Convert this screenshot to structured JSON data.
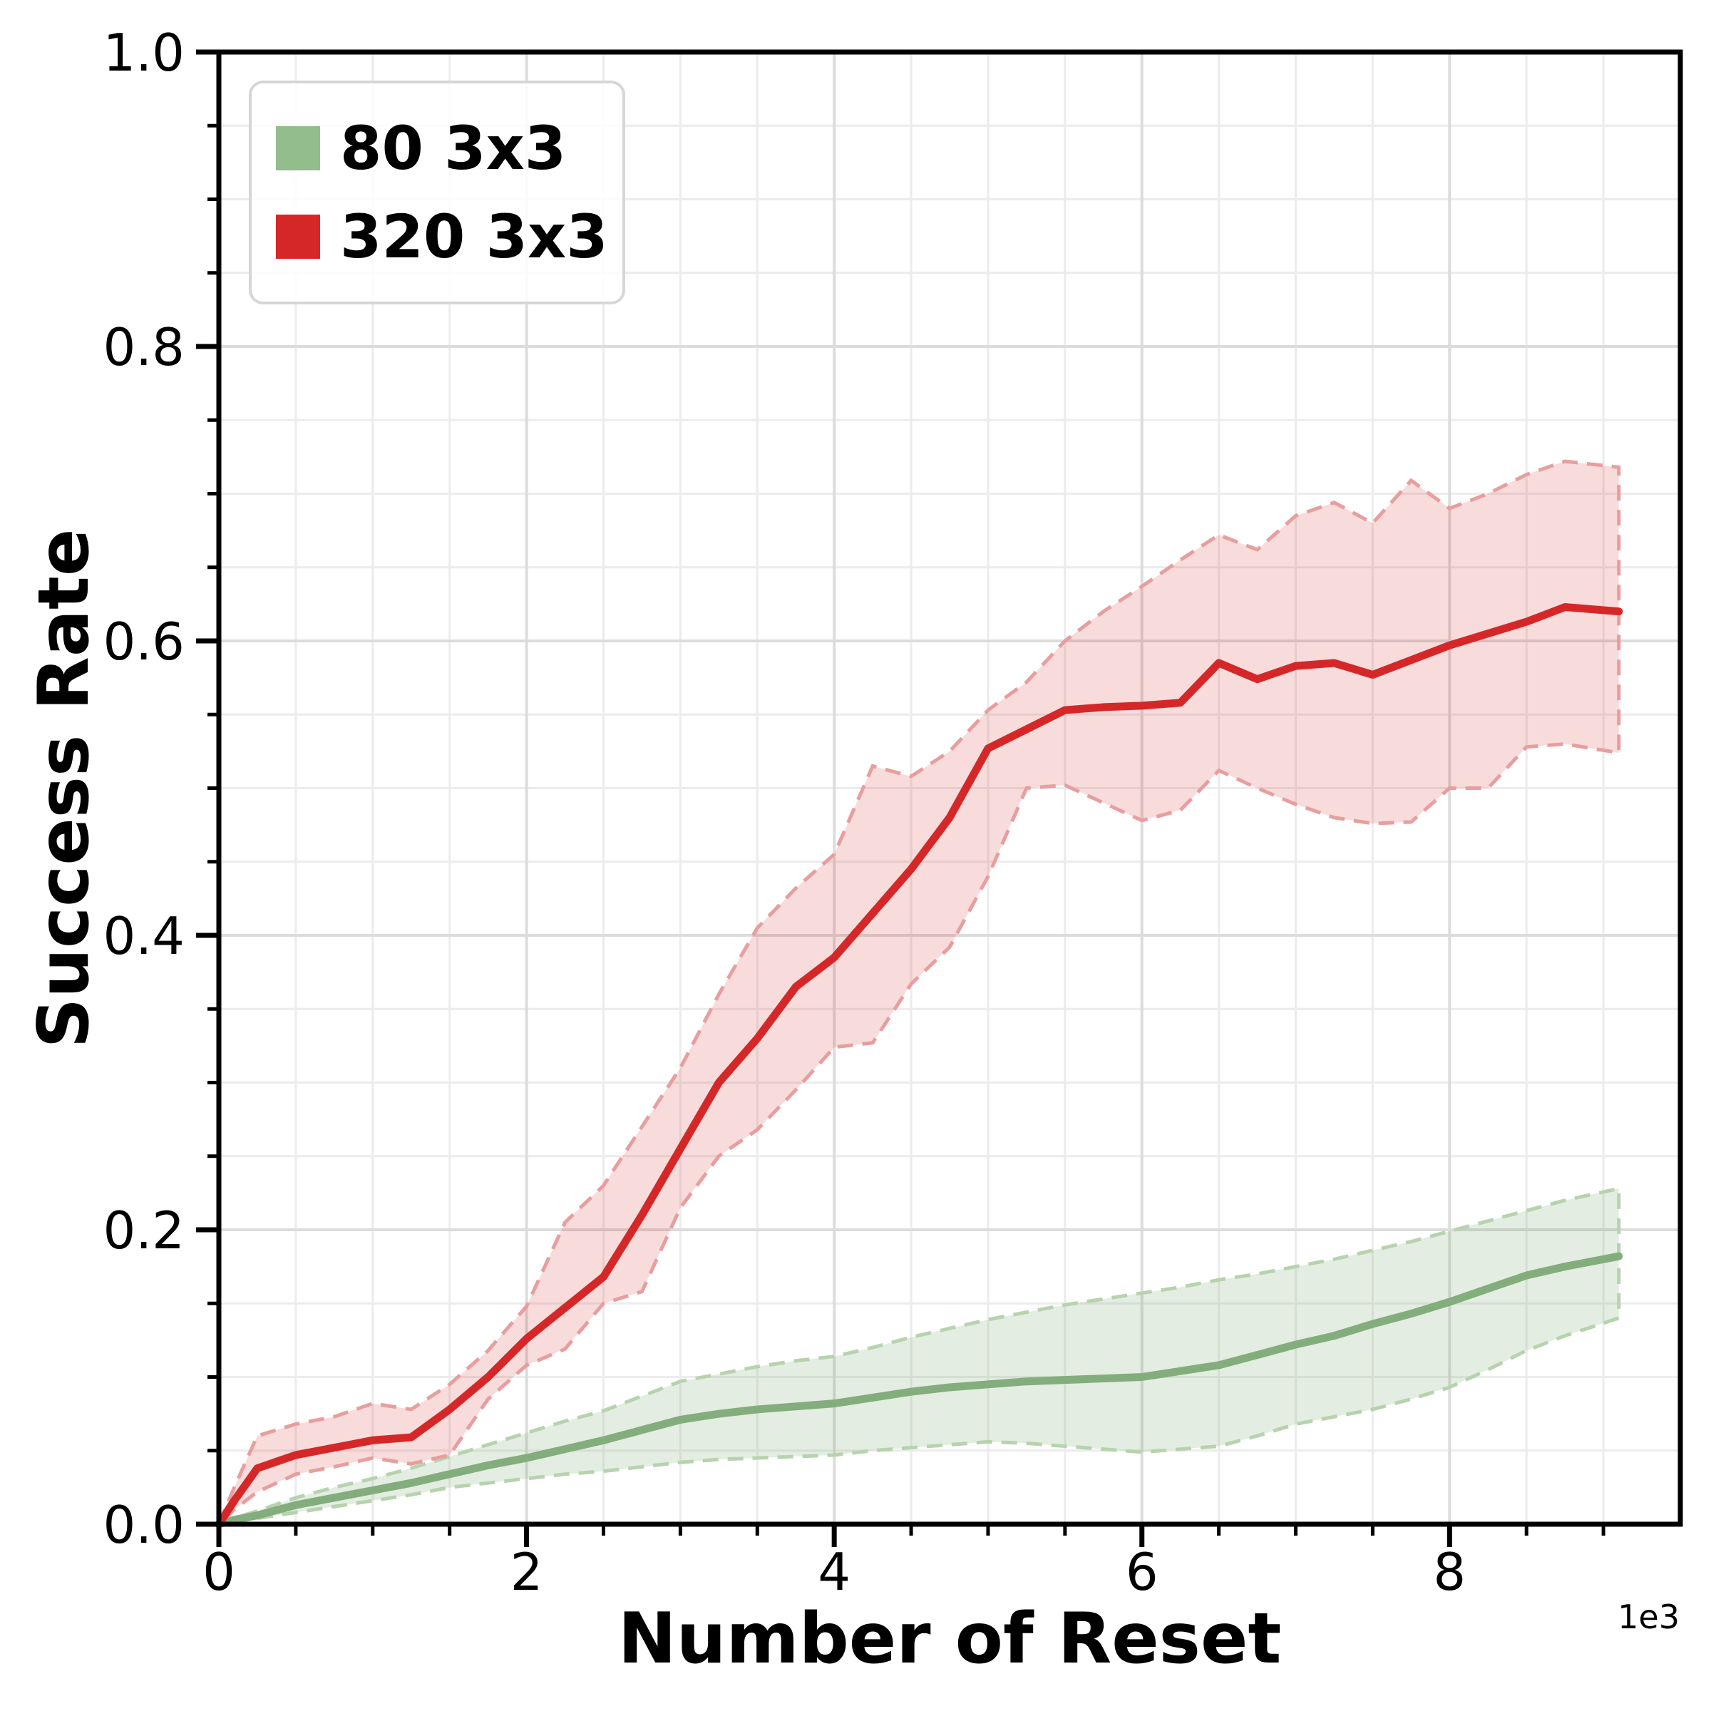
{
  "chart_data": {
    "type": "line",
    "title": "",
    "xlabel": "Number of Reset",
    "ylabel": "Success Rate",
    "x_offset_label": "1e3",
    "xlim": [
      0,
      9.5
    ],
    "ylim": [
      0,
      1.0
    ],
    "grid": true,
    "legend_position": "upper-left",
    "x_major_ticks": [
      0,
      2,
      4,
      6,
      8
    ],
    "x_major_labels": [
      "0",
      "2",
      "4",
      "6",
      "8"
    ],
    "x_minor_step": 0.5,
    "y_major_ticks": [
      0,
      0.2,
      0.4,
      0.6,
      0.8,
      1.0
    ],
    "y_major_labels": [
      "0.0",
      "0.2",
      "0.4",
      "0.6",
      "0.8",
      "1.0"
    ],
    "y_minor_step": 0.05,
    "axis_color": "#000000",
    "grid_major_color": "#dcdcdc",
    "grid_minor_color": "#ececec",
    "x": [
      0,
      0.1,
      0.25,
      0.5,
      0.75,
      1,
      1.25,
      1.5,
      1.75,
      2,
      2.25,
      2.5,
      2.75,
      3,
      3.25,
      3.5,
      3.75,
      4,
      4.25,
      4.5,
      4.75,
      5,
      5.25,
      5.5,
      5.75,
      6,
      6.25,
      6.5,
      6.75,
      7,
      7.25,
      7.5,
      7.75,
      8,
      8.25,
      8.5,
      8.75,
      9.1
    ],
    "series": [
      {
        "name": "80 3x3",
        "color": "#93bd8c",
        "line_color": "#83ad7c",
        "edge_color": "#b7d3ae",
        "band_fill_opacity": 0.22,
        "mean": [
          0,
          0.003,
          0.006,
          0.013,
          0.018,
          0.023,
          0.028,
          0.034,
          0.04,
          0.045,
          0.051,
          0.057,
          0.064,
          0.071,
          0.075,
          0.078,
          0.08,
          0.082,
          0.086,
          0.09,
          0.093,
          0.095,
          0.097,
          0.098,
          0.099,
          0.1,
          0.104,
          0.108,
          0.115,
          0.122,
          0.128,
          0.136,
          0.143,
          0.151,
          0.16,
          0.169,
          0.175,
          0.182
        ],
        "upper": [
          0,
          0.004,
          0.009,
          0.018,
          0.025,
          0.031,
          0.038,
          0.046,
          0.054,
          0.062,
          0.07,
          0.077,
          0.087,
          0.097,
          0.102,
          0.107,
          0.111,
          0.114,
          0.12,
          0.127,
          0.133,
          0.139,
          0.144,
          0.149,
          0.153,
          0.157,
          0.161,
          0.166,
          0.17,
          0.175,
          0.18,
          0.186,
          0.192,
          0.199,
          0.206,
          0.213,
          0.22,
          0.228
        ],
        "lower": [
          0,
          0.002,
          0.004,
          0.008,
          0.012,
          0.016,
          0.02,
          0.025,
          0.028,
          0.031,
          0.034,
          0.036,
          0.039,
          0.042,
          0.044,
          0.045,
          0.046,
          0.047,
          0.05,
          0.052,
          0.054,
          0.056,
          0.055,
          0.053,
          0.051,
          0.049,
          0.051,
          0.053,
          0.06,
          0.068,
          0.073,
          0.078,
          0.085,
          0.093,
          0.105,
          0.118,
          0.128,
          0.14
        ]
      },
      {
        "name": "320 3x3",
        "color": "#d62728",
        "line_color": "#d62728",
        "edge_color": "#e89e9e",
        "band_fill_opacity": 0.16,
        "mean": [
          0,
          0.016,
          0.038,
          0.047,
          0.052,
          0.057,
          0.059,
          0.078,
          0.1,
          0.126,
          0.147,
          0.168,
          0.21,
          0.255,
          0.3,
          0.33,
          0.365,
          0.385,
          0.415,
          0.445,
          0.48,
          0.527,
          0.54,
          0.553,
          0.555,
          0.556,
          0.558,
          0.585,
          0.574,
          0.583,
          0.585,
          0.577,
          0.587,
          0.597,
          0.605,
          0.613,
          0.623,
          0.62
        ],
        "upper": [
          0,
          0.025,
          0.06,
          0.068,
          0.073,
          0.082,
          0.078,
          0.095,
          0.118,
          0.148,
          0.205,
          0.23,
          0.27,
          0.31,
          0.36,
          0.405,
          0.432,
          0.455,
          0.515,
          0.508,
          0.525,
          0.553,
          0.572,
          0.6,
          0.62,
          0.637,
          0.655,
          0.672,
          0.662,
          0.685,
          0.694,
          0.68,
          0.709,
          0.69,
          0.7,
          0.713,
          0.722,
          0.718
        ],
        "lower": [
          0,
          0.01,
          0.022,
          0.034,
          0.039,
          0.045,
          0.041,
          0.047,
          0.085,
          0.108,
          0.119,
          0.15,
          0.158,
          0.215,
          0.25,
          0.268,
          0.295,
          0.324,
          0.327,
          0.367,
          0.392,
          0.44,
          0.5,
          0.502,
          0.49,
          0.478,
          0.485,
          0.512,
          0.5,
          0.489,
          0.48,
          0.476,
          0.477,
          0.5,
          0.5,
          0.528,
          0.53,
          0.524
        ]
      }
    ]
  },
  "legend": {
    "items": [
      {
        "label": "80 3x3"
      },
      {
        "label": "320 3x3"
      }
    ]
  }
}
